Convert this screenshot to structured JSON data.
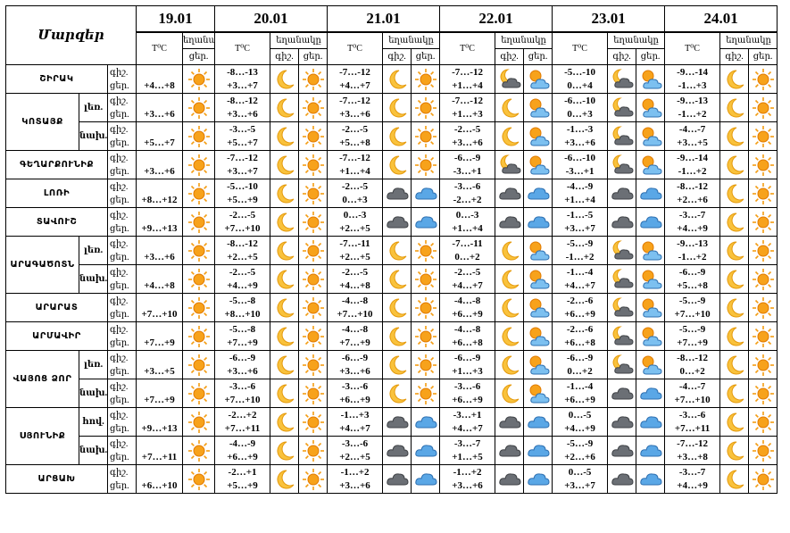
{
  "header": {
    "title": "Մարզեր",
    "dates": [
      "19.01",
      "20.01",
      "21.01",
      "22.01",
      "23.01",
      "24.01"
    ],
    "temp": "T⁰C",
    "weather": "եղանակը",
    "night": "գիշ.",
    "day": "ցեր."
  },
  "rows": [
    {
      "region": "ՇԻՐԱԿ",
      "parts": [
        {
          "d19": "+4…+8",
          "i19": "sun",
          "days": [
            {
              "n": "-8…-13",
              "d": "+3…+7",
              "i": [
                "moon",
                "sun"
              ]
            },
            {
              "n": "-7…-12",
              "d": "+4…+7",
              "i": [
                "moon",
                "sun"
              ]
            },
            {
              "n": "-7…-12",
              "d": "+1…+4",
              "i": [
                "moon-cloud",
                "sun-cloud"
              ]
            },
            {
              "n": "-5…-10",
              "d": "0…+4",
              "i": [
                "moon-cloud",
                "sun-cloud"
              ]
            },
            {
              "n": "-9…-14",
              "d": "-1…+3",
              "i": [
                "moon",
                "sun"
              ]
            }
          ]
        }
      ]
    },
    {
      "region": "ԿՈՏԱՅՔ",
      "parts": [
        {
          "label": "լեռ.",
          "d19": "+3…+6",
          "i19": "sun",
          "days": [
            {
              "n": "-8…-12",
              "d": "+3…+6",
              "i": [
                "moon",
                "sun"
              ]
            },
            {
              "n": "-7…-12",
              "d": "+3…+6",
              "i": [
                "moon",
                "sun"
              ]
            },
            {
              "n": "-7…-12",
              "d": "+1…+3",
              "i": [
                "moon",
                "sun-cloud"
              ]
            },
            {
              "n": "-6…-10",
              "d": "0…+3",
              "i": [
                "moon-cloud",
                "sun-cloud"
              ]
            },
            {
              "n": "-9…-13",
              "d": "-1…+2",
              "i": [
                "moon",
                "sun"
              ]
            }
          ]
        },
        {
          "label": "նախ.",
          "d19": "+5…+7",
          "i19": "sun",
          "days": [
            {
              "n": "-3…-5",
              "d": "+5…+7",
              "i": [
                "moon",
                "sun"
              ]
            },
            {
              "n": "-2…-5",
              "d": "+5…+8",
              "i": [
                "moon",
                "sun"
              ]
            },
            {
              "n": "-2…-5",
              "d": "+3…+6",
              "i": [
                "moon",
                "sun-cloud"
              ]
            },
            {
              "n": "-1…-3",
              "d": "+3…+6",
              "i": [
                "moon-cloud",
                "sun-cloud"
              ]
            },
            {
              "n": "-4…-7",
              "d": "+3…+5",
              "i": [
                "moon",
                "sun"
              ]
            }
          ]
        }
      ]
    },
    {
      "region": "ԳԵՂԱՐՔՈՒՆԻՔ",
      "parts": [
        {
          "d19": "+3…+6",
          "i19": "sun",
          "days": [
            {
              "n": "-7…-12",
              "d": "+3…+7",
              "i": [
                "moon",
                "sun"
              ]
            },
            {
              "n": "-7…-12",
              "d": "+1…+4",
              "i": [
                "moon",
                "sun"
              ]
            },
            {
              "n": "-6…-9",
              "d": "-3…+1",
              "i": [
                "moon-cloud",
                "sun-cloud"
              ]
            },
            {
              "n": "-6…-10",
              "d": "-3…+1",
              "i": [
                "moon-cloud",
                "sun-cloud"
              ]
            },
            {
              "n": "-9…-14",
              "d": "-1…+2",
              "i": [
                "moon",
                "sun"
              ]
            }
          ]
        }
      ]
    },
    {
      "region": "ԼՈՌԻ",
      "parts": [
        {
          "d19": "+8…+12",
          "i19": "sun",
          "days": [
            {
              "n": "-5…-10",
              "d": "+5…+9",
              "i": [
                "moon",
                "sun"
              ]
            },
            {
              "n": "-2…-5",
              "d": "0…+3",
              "i": [
                "cloud",
                "cloud-blue"
              ]
            },
            {
              "n": "-3…-6",
              "d": "-2…+2",
              "i": [
                "cloud",
                "cloud-blue"
              ]
            },
            {
              "n": "-4…-9",
              "d": "+1…+4",
              "i": [
                "cloud",
                "cloud-blue"
              ]
            },
            {
              "n": "-8…-12",
              "d": "+2…+6",
              "i": [
                "moon",
                "sun"
              ]
            }
          ]
        }
      ]
    },
    {
      "region": "ՏԱՎՈՒՇ",
      "parts": [
        {
          "d19": "+9…+13",
          "i19": "sun",
          "days": [
            {
              "n": "-2…-5",
              "d": "+7…+10",
              "i": [
                "moon",
                "sun"
              ]
            },
            {
              "n": "0…-3",
              "d": "+2…+5",
              "i": [
                "cloud",
                "cloud-blue"
              ]
            },
            {
              "n": "0…-3",
              "d": "+1…+4",
              "i": [
                "cloud",
                "cloud-blue"
              ]
            },
            {
              "n": "-1…-5",
              "d": "+3…+7",
              "i": [
                "cloud",
                "cloud-blue"
              ]
            },
            {
              "n": "-3…-7",
              "d": "+4…+9",
              "i": [
                "moon",
                "sun"
              ]
            }
          ]
        }
      ]
    },
    {
      "region": "ԱՐԱԳԱԾՈՏՆ",
      "parts": [
        {
          "label": "լեռ.",
          "d19": "+3…+6",
          "i19": "sun",
          "days": [
            {
              "n": "-8…-12",
              "d": "+2…+5",
              "i": [
                "moon",
                "sun"
              ]
            },
            {
              "n": "-7…-11",
              "d": "+2…+5",
              "i": [
                "moon",
                "sun"
              ]
            },
            {
              "n": "-7…-11",
              "d": "0…+2",
              "i": [
                "moon",
                "sun-cloud"
              ]
            },
            {
              "n": "-5…-9",
              "d": "-1…+2",
              "i": [
                "moon-cloud",
                "sun-cloud"
              ]
            },
            {
              "n": "-9…-13",
              "d": "-1…+2",
              "i": [
                "moon",
                "sun"
              ]
            }
          ]
        },
        {
          "label": "նախ.",
          "d19": "+4…+8",
          "i19": "sun",
          "days": [
            {
              "n": "-2…-5",
              "d": "+4…+9",
              "i": [
                "moon",
                "sun"
              ]
            },
            {
              "n": "-2…-5",
              "d": "+4…+8",
              "i": [
                "moon",
                "sun"
              ]
            },
            {
              "n": "-2…-5",
              "d": "+4…+7",
              "i": [
                "moon",
                "sun-cloud"
              ]
            },
            {
              "n": "-1…-4",
              "d": "+4…+7",
              "i": [
                "moon-cloud",
                "sun-cloud"
              ]
            },
            {
              "n": "-6…-9",
              "d": "+5…+8",
              "i": [
                "moon",
                "sun"
              ]
            }
          ]
        }
      ]
    },
    {
      "region": "ԱՐԱՐԱՏ",
      "parts": [
        {
          "d19": "+7…+10",
          "i19": "sun",
          "days": [
            {
              "n": "-5…-8",
              "d": "+8…+10",
              "i": [
                "moon",
                "sun"
              ]
            },
            {
              "n": "-4…-8",
              "d": "+7…+10",
              "i": [
                "moon",
                "sun"
              ]
            },
            {
              "n": "-4…-8",
              "d": "+6…+9",
              "i": [
                "moon",
                "sun-cloud"
              ]
            },
            {
              "n": "-2…-6",
              "d": "+6…+9",
              "i": [
                "moon-cloud",
                "sun-cloud"
              ]
            },
            {
              "n": "-5…-9",
              "d": "+7…+10",
              "i": [
                "moon",
                "sun"
              ]
            }
          ]
        }
      ]
    },
    {
      "region": "ԱՐՄԱՎԻՐ",
      "parts": [
        {
          "d19": "+7…+9",
          "i19": "sun",
          "days": [
            {
              "n": "-5…-8",
              "d": "+7…+9",
              "i": [
                "moon",
                "sun"
              ]
            },
            {
              "n": "-4…-8",
              "d": "+7…+9",
              "i": [
                "moon",
                "sun"
              ]
            },
            {
              "n": "-4…-8",
              "d": "+6…+8",
              "i": [
                "moon",
                "sun-cloud"
              ]
            },
            {
              "n": "-2…-6",
              "d": "+6…+8",
              "i": [
                "moon-cloud",
                "sun-cloud"
              ]
            },
            {
              "n": "-5…-9",
              "d": "+7…+9",
              "i": [
                "moon",
                "sun"
              ]
            }
          ]
        }
      ]
    },
    {
      "region": "ՎԱՅՈՑ ՁՈՐ",
      "parts": [
        {
          "label": "լեռ.",
          "d19": "+3…+5",
          "i19": "sun",
          "days": [
            {
              "n": "-6…-9",
              "d": "+3…+6",
              "i": [
                "moon",
                "sun"
              ]
            },
            {
              "n": "-6…-9",
              "d": "+3…+6",
              "i": [
                "moon",
                "sun"
              ]
            },
            {
              "n": "-6…-9",
              "d": "+1…+3",
              "i": [
                "moon",
                "sun-cloud"
              ]
            },
            {
              "n": "-6…-9",
              "d": "0…+2",
              "i": [
                "moon-cloud",
                "sun-cloud"
              ]
            },
            {
              "n": "-8…-12",
              "d": "0…+2",
              "i": [
                "moon",
                "sun"
              ]
            }
          ]
        },
        {
          "label": "նախ.",
          "d19": "+7…+9",
          "i19": "sun",
          "days": [
            {
              "n": "-3…-6",
              "d": "+7…+10",
              "i": [
                "moon",
                "sun"
              ]
            },
            {
              "n": "-3…-6",
              "d": "+6…+9",
              "i": [
                "moon",
                "sun"
              ]
            },
            {
              "n": "-3…-6",
              "d": "+6…+9",
              "i": [
                "moon",
                "sun-cloud"
              ]
            },
            {
              "n": "-1…-4",
              "d": "+6…+9",
              "i": [
                "cloud",
                "cloud-blue"
              ]
            },
            {
              "n": "-4…-7",
              "d": "+7…+10",
              "i": [
                "moon",
                "sun"
              ]
            }
          ]
        }
      ]
    },
    {
      "region": "ՍՅՈՒՆԻՔ",
      "parts": [
        {
          "label": "հով.",
          "d19": "+9…+13",
          "i19": "sun",
          "days": [
            {
              "n": "-2…+2",
              "d": "+7…+11",
              "i": [
                "moon",
                "sun"
              ]
            },
            {
              "n": "-1…+3",
              "d": "+4…+7",
              "i": [
                "cloud",
                "cloud-blue"
              ]
            },
            {
              "n": "-3…+1",
              "d": "+4…+7",
              "i": [
                "cloud",
                "cloud-blue"
              ]
            },
            {
              "n": "0…-5",
              "d": "+4…+9",
              "i": [
                "cloud",
                "cloud-blue"
              ]
            },
            {
              "n": "-3…-6",
              "d": "+7…+11",
              "i": [
                "moon",
                "sun"
              ]
            }
          ]
        },
        {
          "label": "նախ.",
          "d19": "+7…+11",
          "i19": "sun",
          "days": [
            {
              "n": "-4…-9",
              "d": "+6…+9",
              "i": [
                "moon",
                "sun"
              ]
            },
            {
              "n": "-3…-6",
              "d": "+2…+5",
              "i": [
                "cloud",
                "cloud-blue"
              ]
            },
            {
              "n": "-3…-7",
              "d": "+1…+5",
              "i": [
                "cloud",
                "cloud-blue"
              ]
            },
            {
              "n": "-5…-9",
              "d": "+2…+6",
              "i": [
                "cloud",
                "cloud-blue"
              ]
            },
            {
              "n": "-7…-12",
              "d": "+3…+8",
              "i": [
                "moon",
                "sun"
              ]
            }
          ]
        }
      ]
    },
    {
      "region": "ԱՐՑԱԽ",
      "parts": [
        {
          "d19": "+6…+10",
          "i19": "sun",
          "days": [
            {
              "n": "-2…+1",
              "d": "+5…+9",
              "i": [
                "moon",
                "sun"
              ]
            },
            {
              "n": "-1…+2",
              "d": "+3…+6",
              "i": [
                "cloud",
                "cloud-blue"
              ]
            },
            {
              "n": "-1…+2",
              "d": "+3…+6",
              "i": [
                "cloud",
                "cloud-blue"
              ]
            },
            {
              "n": "0…-5",
              "d": "+3…+7",
              "i": [
                "cloud",
                "cloud-blue"
              ]
            },
            {
              "n": "-3…-7",
              "d": "+4…+9",
              "i": [
                "moon",
                "sun"
              ]
            }
          ]
        }
      ]
    }
  ]
}
